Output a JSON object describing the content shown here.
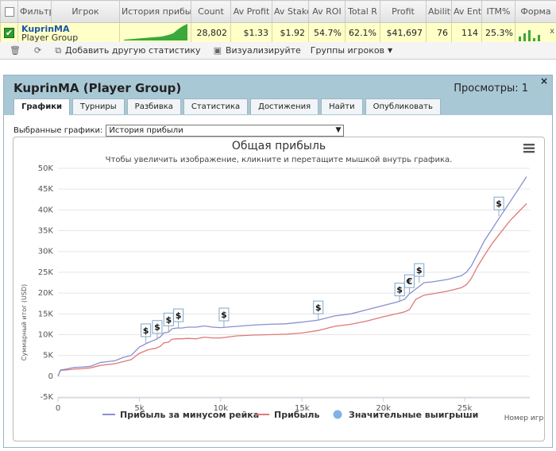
{
  "table": {
    "headers": [
      "Фильтр",
      "Игрок",
      "История прибыли",
      "Count",
      "Av Profit",
      "Av Stake",
      "Av ROI",
      "Total R",
      "Profit",
      "Ability",
      "Av Ent",
      "ITM%",
      "Форма"
    ],
    "row": {
      "player_name": "KuprinMA",
      "player_group": "Player Group",
      "count": "28,802",
      "av_profit": "$1.33",
      "av_stake": "$1.92",
      "av_roi": "54.7%",
      "total_roi": "62.1%",
      "profit": "$41,697",
      "ability": "76",
      "av_entrants": "114",
      "itm": "25.3%",
      "form_close": "x"
    }
  },
  "toolbar": {
    "add_stat": "Добавить другую статистику",
    "visualize": "Визуализируйте",
    "player_groups": "Группы игроков"
  },
  "panel": {
    "title": "KuprinMA (Player Group)",
    "views": "Просмотры: 1",
    "close": "×",
    "tabs": [
      "Графики",
      "Турниры",
      "Разбивка",
      "Статистика",
      "Достижения",
      "Найти",
      "Опубликовать"
    ],
    "select_label": "Выбранные графики:",
    "select_value": "История прибыли"
  },
  "chart_data": {
    "type": "line",
    "title": "Общая прибыль",
    "subtitle": "Чтобы увеличить изображение, кликните и перетащите мышкой внутрь графика.",
    "xlabel": "Номер игры",
    "ylabel": "Суммарный итог (USD)",
    "xlim": [
      0,
      29000
    ],
    "ylim": [
      -5000,
      50000
    ],
    "x_ticks": [
      0,
      5000,
      10000,
      15000,
      20000,
      25000
    ],
    "x_tick_labels": [
      "0",
      "5k",
      "10k",
      "15k",
      "20k",
      "25k"
    ],
    "y_ticks": [
      -5000,
      0,
      5000,
      10000,
      15000,
      20000,
      25000,
      30000,
      35000,
      40000,
      45000,
      50000
    ],
    "y_tick_labels": [
      "-5K",
      "0",
      "5K",
      "10K",
      "15K",
      "20K",
      "25K",
      "30K",
      "35K",
      "40K",
      "45K",
      "50K"
    ],
    "grid": true,
    "legend_position": "bottom",
    "series": [
      {
        "name": "Прибыль за минусом рейка",
        "color": "#8a8fd0",
        "x": [
          0,
          150,
          500,
          1000,
          1500,
          2000,
          2600,
          3000,
          3500,
          4000,
          4500,
          5000,
          5500,
          5800,
          6000,
          6300,
          6500,
          6800,
          7000,
          7300,
          7600,
          8000,
          8500,
          9000,
          9500,
          10000,
          11000,
          12000,
          13000,
          14000,
          15000,
          16000,
          17000,
          18000,
          19000,
          20000,
          20800,
          21300,
          21600,
          22000,
          22500,
          23000,
          24000,
          24800,
          25100,
          25400,
          25800,
          26200,
          26700,
          27200,
          27800,
          28300,
          28800
        ],
        "y": [
          0,
          1500,
          1700,
          2100,
          2200,
          2400,
          3300,
          3500,
          3700,
          4500,
          5000,
          7000,
          8000,
          8500,
          8800,
          9500,
          10400,
          10600,
          11400,
          11600,
          11600,
          11800,
          11800,
          12100,
          11800,
          11700,
          12000,
          12300,
          12500,
          12600,
          13000,
          13500,
          14500,
          15000,
          16000,
          17000,
          17800,
          18500,
          19800,
          21000,
          22500,
          22700,
          23300,
          24200,
          25000,
          26500,
          29500,
          32500,
          35500,
          38500,
          42000,
          45000,
          48000
        ]
      },
      {
        "name": "Прибыль",
        "color": "#e07878",
        "x": [
          0,
          150,
          500,
          1000,
          1500,
          2000,
          2600,
          3000,
          3500,
          4000,
          4500,
          5000,
          5500,
          5800,
          6000,
          6300,
          6500,
          6800,
          7000,
          7300,
          7600,
          8000,
          8500,
          9000,
          9500,
          10000,
          11000,
          12000,
          13000,
          14000,
          15000,
          16000,
          17000,
          18000,
          19000,
          20000,
          20800,
          21300,
          21600,
          22000,
          22500,
          23000,
          24000,
          24800,
          25100,
          25400,
          25800,
          26200,
          26700,
          27200,
          27800,
          28300,
          28800
        ],
        "y": [
          0,
          1400,
          1500,
          1700,
          1800,
          2000,
          2600,
          2800,
          3000,
          3500,
          4000,
          5500,
          6300,
          6600,
          6700,
          7200,
          8000,
          8200,
          8900,
          9000,
          9000,
          9100,
          9000,
          9400,
          9200,
          9200,
          9700,
          9900,
          10000,
          10100,
          10400,
          11000,
          12000,
          12500,
          13300,
          14300,
          15000,
          15500,
          16000,
          18500,
          19500,
          19800,
          20500,
          21300,
          22000,
          23500,
          26500,
          29000,
          32000,
          34500,
          37500,
          39500,
          41500
        ]
      }
    ],
    "markers": {
      "name": "Значительные выигрыши",
      "color": "#7fb3e6",
      "points": [
        {
          "x": 5400,
          "y": 8000,
          "label": "$"
        },
        {
          "x": 6100,
          "y": 8800,
          "label": "$"
        },
        {
          "x": 6800,
          "y": 10600,
          "label": "$"
        },
        {
          "x": 7400,
          "y": 11600,
          "label": "$"
        },
        {
          "x": 10200,
          "y": 11800,
          "label": "$"
        },
        {
          "x": 16000,
          "y": 13500,
          "label": "$"
        },
        {
          "x": 21000,
          "y": 17800,
          "label": "$"
        },
        {
          "x": 21600,
          "y": 19800,
          "label": "€"
        },
        {
          "x": 22200,
          "y": 22500,
          "label": "$"
        },
        {
          "x": 27100,
          "y": 38500,
          "label": "$"
        }
      ]
    }
  }
}
